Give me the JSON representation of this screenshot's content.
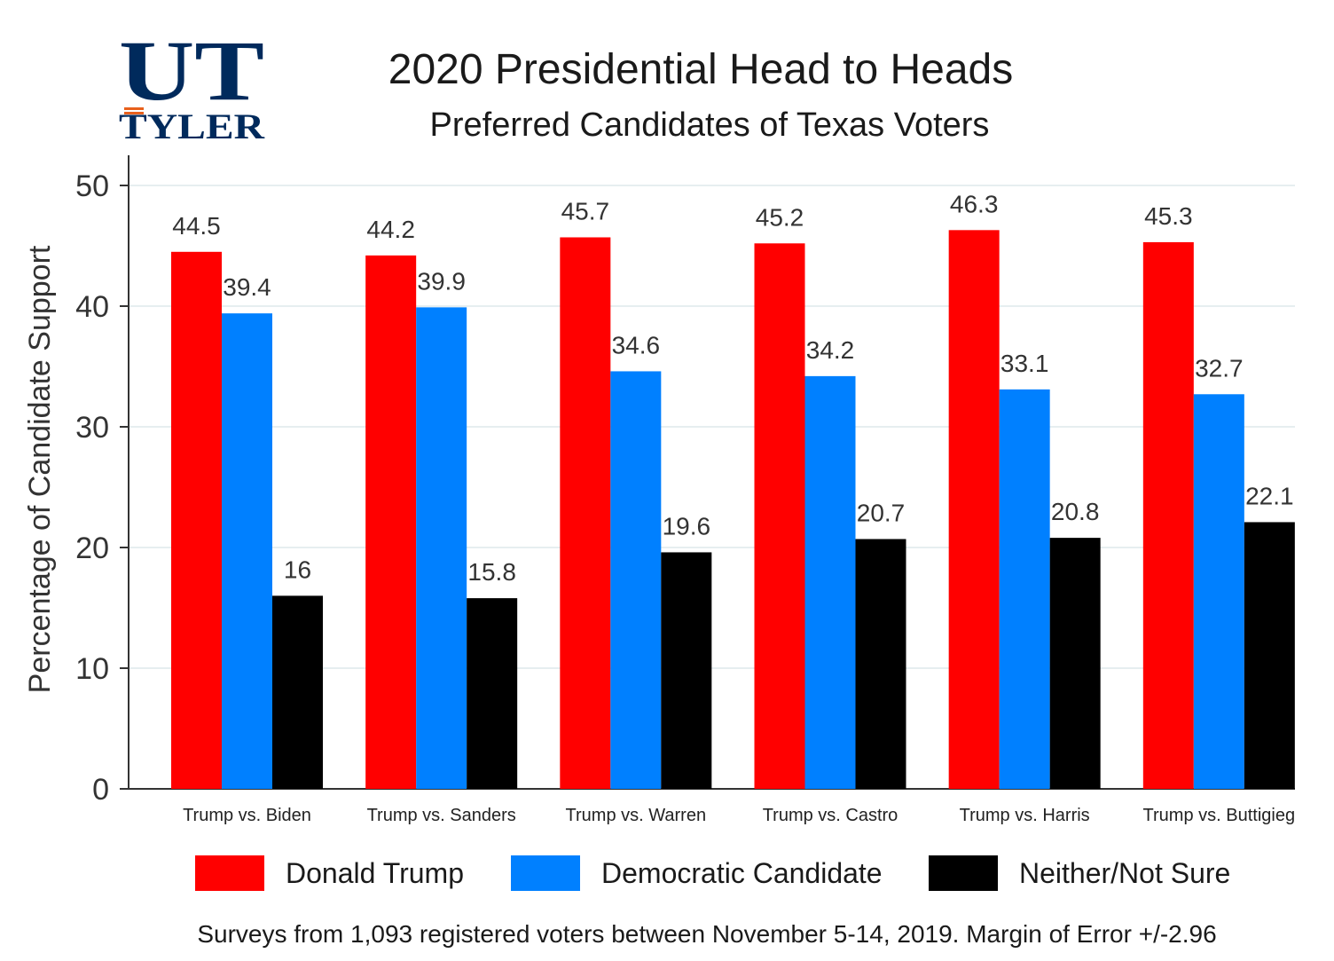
{
  "logo": {
    "line1": "UT",
    "line2": "TYLER",
    "color": "#002a5c",
    "accent": "#e8601c"
  },
  "title": "2020 Presidential Head to Heads",
  "subtitle": "Preferred Candidates of Texas Voters",
  "note": "Surveys from 1,093 registered voters between November 5-14, 2019. Margin of Error +/-2.96",
  "chart_data": {
    "type": "bar",
    "title": "2020 Presidential Head to Heads",
    "subtitle": "Preferred Candidates of Texas Voters",
    "xlabel": "",
    "ylabel": "Percentage of Candidate Support",
    "ylim": [
      0,
      50
    ],
    "yticks": [
      0,
      10,
      20,
      30,
      40,
      50
    ],
    "grid": true,
    "legend_position": "bottom",
    "categories": [
      "Trump vs. Biden",
      "Trump vs. Sanders",
      "Trump vs. Warren",
      "Trump vs. Castro",
      "Trump vs. Harris",
      "Trump vs. Buttigieg"
    ],
    "series": [
      {
        "name": "Donald Trump",
        "color": "#ff0000",
        "values": [
          44.5,
          44.2,
          45.7,
          45.2,
          46.3,
          45.3
        ],
        "labels": [
          "44.5",
          "44.2",
          "45.7",
          "45.2",
          "46.3",
          "45.3"
        ]
      },
      {
        "name": "Democratic Candidate",
        "color": "#0080ff",
        "values": [
          39.4,
          39.9,
          34.6,
          34.2,
          33.1,
          32.7
        ],
        "labels": [
          "39.4",
          "39.9",
          "34.6",
          "34.2",
          "33.1",
          "32.7"
        ]
      },
      {
        "name": "Neither/Not Sure",
        "color": "#000000",
        "values": [
          16,
          15.8,
          19.6,
          20.7,
          20.8,
          22.1
        ],
        "labels": [
          "16",
          "15.8",
          "19.6",
          "20.7",
          "20.8",
          "22.1"
        ]
      }
    ]
  }
}
